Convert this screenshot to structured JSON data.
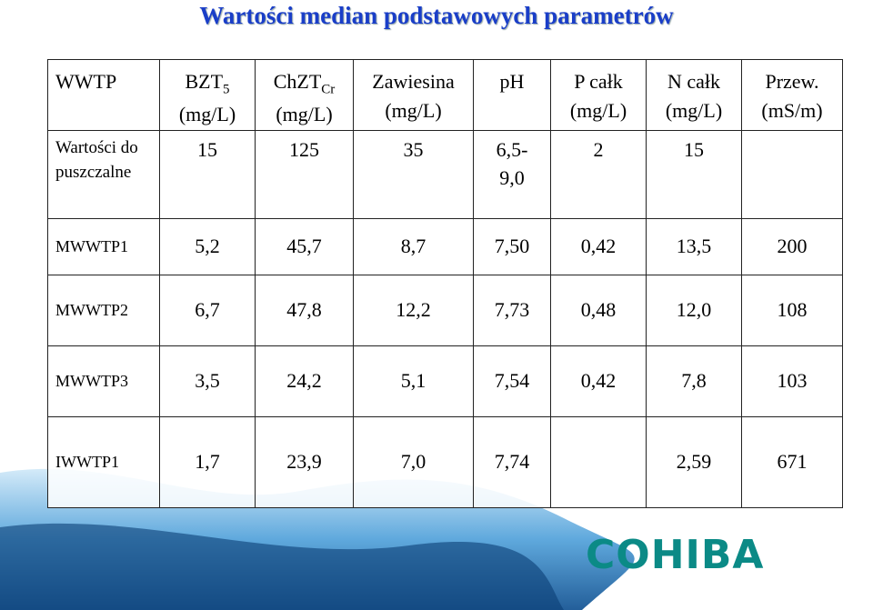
{
  "title": "Wartości median podstawowych parametrów",
  "table": {
    "header": [
      {
        "text": "WWTP"
      },
      {
        "text": "BZT",
        "sub": "5",
        "unit": "(mg/L)"
      },
      {
        "text": "ChZT",
        "sub": "Cr",
        "unit": "(mg/L)"
      },
      {
        "text": "Zawiesina",
        "unit": "(mg/L)"
      },
      {
        "text": "pH"
      },
      {
        "text": "P całk",
        "unit": "(mg/L)"
      },
      {
        "text": "N całk",
        "unit": "(mg/L)"
      },
      {
        "text": "Przew.",
        "unit": "(mS/m)"
      }
    ],
    "rows": [
      [
        "Wartości dopuszczalne",
        "15",
        "125",
        "35",
        "6,5-9,0",
        "2",
        "15",
        null
      ],
      [
        "MWWTP1",
        "5,2",
        "45,7",
        "8,7",
        "7,50",
        "0,42",
        "13,5",
        "200"
      ],
      [
        "MWWTP2",
        "6,7",
        "47,8",
        "12,2",
        "7,73",
        "0,48",
        "12,0",
        "108"
      ],
      [
        "MWWTP3",
        "3,5",
        "24,2",
        "5,1",
        "7,54",
        "0,42",
        "7,8",
        "103"
      ],
      [
        "IWWTP1",
        "1,7",
        "23,9",
        "7,0",
        "7,74",
        null,
        "2,59",
        "671"
      ]
    ]
  },
  "logo": "COHIBA"
}
